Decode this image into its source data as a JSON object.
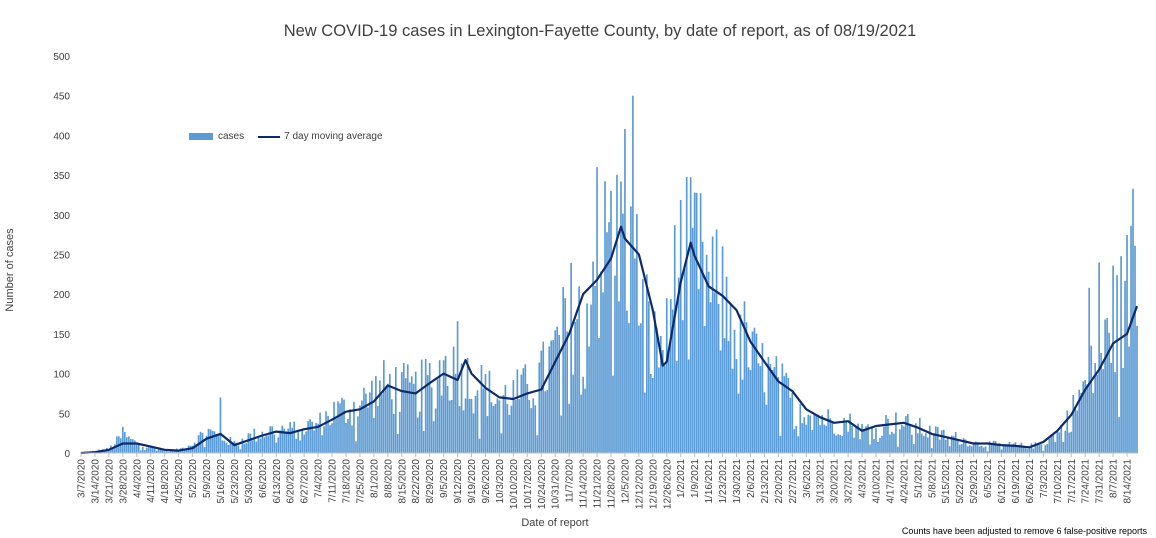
{
  "chart_data": {
    "type": "bar",
    "title": "New COVID-19 cases in Lexington-Fayette County, by date of report, as of 08/19/2021",
    "xlabel": "Date of report",
    "ylabel": "Number of cases",
    "ylim": [
      0,
      500
    ],
    "y_ticks": [
      "0",
      "50",
      "100",
      "150",
      "200",
      "250",
      "300",
      "350",
      "400",
      "450",
      "500"
    ],
    "x_tick_labels": [
      "3/7/2020",
      "3/14/2020",
      "3/21/2020",
      "3/28/2020",
      "4/4/2020",
      "4/11/2020",
      "4/18/2020",
      "4/25/2020",
      "5/2/2020",
      "5/9/2020",
      "5/16/2020",
      "5/23/2020",
      "5/30/2020",
      "6/6/2020",
      "6/13/2020",
      "6/20/2020",
      "6/27/2020",
      "7/4/2020",
      "7/11/2020",
      "7/18/2020",
      "7/25/2020",
      "8/1/2020",
      "8/8/2020",
      "8/15/2020",
      "8/22/2020",
      "8/29/2020",
      "9/5/2020",
      "9/12/2020",
      "9/19/2020",
      "9/26/2020",
      "10/3/2020",
      "10/10/2020",
      "10/17/2020",
      "10/24/2020",
      "10/31/2020",
      "11/7/2020",
      "11/14/2020",
      "11/21/2020",
      "11/28/2020",
      "12/5/2020",
      "12/12/2020",
      "12/19/2020",
      "12/26/2020",
      "1/2/2021",
      "1/9/2021",
      "1/16/2021",
      "1/23/2021",
      "1/30/2021",
      "2/6/2021",
      "2/13/2021",
      "2/20/2021",
      "2/27/2021",
      "3/6/2021",
      "3/13/2021",
      "3/20/2021",
      "3/27/2021",
      "4/3/2021",
      "4/10/2021",
      "4/17/2021",
      "4/24/2021",
      "5/1/2021",
      "5/8/2021",
      "5/15/2021",
      "5/22/2021",
      "5/29/2021",
      "6/5/2021",
      "6/12/2021",
      "6/19/2021",
      "6/26/2021",
      "7/3/2021",
      "7/10/2021",
      "7/17/2021",
      "7/24/2021",
      "7/31/2021",
      "8/7/2021",
      "8/14/2021"
    ],
    "legend": {
      "placement": "upper-left",
      "entries": [
        "cases",
        "7 day moving average"
      ]
    },
    "series": [
      {
        "name": "cases",
        "type": "bar",
        "color": "#5b9bd5",
        "description_points": [
          [
            "3/7/2020",
            0
          ],
          [
            "3/21/2020",
            5
          ],
          [
            "3/28/2020",
            22
          ],
          [
            "4/4/2020",
            12
          ],
          [
            "4/11/2020",
            7
          ],
          [
            "4/18/2020",
            3
          ],
          [
            "4/25/2020",
            4
          ],
          [
            "5/2/2020",
            12
          ],
          [
            "5/9/2020",
            28
          ],
          [
            "5/16/2020",
            20
          ],
          [
            "5/23/2020",
            12
          ],
          [
            "5/30/2020",
            20
          ],
          [
            "6/6/2020",
            25
          ],
          [
            "6/13/2020",
            30
          ],
          [
            "6/20/2020",
            28
          ],
          [
            "6/27/2020",
            33
          ],
          [
            "7/4/2020",
            35
          ],
          [
            "7/11/2020",
            50
          ],
          [
            "7/18/2020",
            55
          ],
          [
            "7/25/2020",
            60
          ],
          [
            "8/1/2020",
            75
          ],
          [
            "8/8/2020",
            85
          ],
          [
            "8/15/2020",
            80
          ],
          [
            "8/22/2020",
            75
          ],
          [
            "8/29/2020",
            90
          ],
          [
            "9/5/2020",
            108
          ],
          [
            "9/12/2020",
            100
          ],
          [
            "9/19/2020",
            90
          ],
          [
            "9/26/2020",
            78
          ],
          [
            "10/3/2020",
            68
          ],
          [
            "10/10/2020",
            72
          ],
          [
            "10/17/2020",
            80
          ],
          [
            "10/24/2020",
            95
          ],
          [
            "10/31/2020",
            125
          ],
          [
            "11/7/2020",
            165
          ],
          [
            "11/14/2020",
            210
          ],
          [
            "11/21/2020",
            230
          ],
          [
            "11/28/2020",
            265
          ],
          [
            "12/5/2020",
            270
          ],
          [
            "12/12/2020",
            215
          ],
          [
            "12/19/2020",
            130
          ],
          [
            "12/26/2020",
            140
          ],
          [
            "1/2/2021",
            235
          ],
          [
            "1/9/2021",
            250
          ],
          [
            "1/16/2021",
            205
          ],
          [
            "1/23/2021",
            190
          ],
          [
            "1/30/2021",
            160
          ],
          [
            "2/6/2021",
            120
          ],
          [
            "2/13/2021",
            100
          ],
          [
            "2/20/2021",
            85
          ],
          [
            "2/27/2021",
            65
          ],
          [
            "3/6/2021",
            55
          ],
          [
            "3/13/2021",
            45
          ],
          [
            "3/20/2021",
            38
          ],
          [
            "3/27/2021",
            38
          ],
          [
            "4/3/2021",
            28
          ],
          [
            "4/10/2021",
            32
          ],
          [
            "4/17/2021",
            38
          ],
          [
            "4/24/2021",
            36
          ],
          [
            "5/1/2021",
            32
          ],
          [
            "5/8/2021",
            25
          ],
          [
            "5/15/2021",
            22
          ],
          [
            "5/22/2021",
            18
          ],
          [
            "5/29/2021",
            12
          ],
          [
            "6/5/2021",
            11
          ],
          [
            "6/12/2021",
            10
          ],
          [
            "6/19/2021",
            10
          ],
          [
            "6/26/2021",
            8
          ],
          [
            "7/3/2021",
            12
          ],
          [
            "7/10/2021",
            25
          ],
          [
            "7/17/2021",
            48
          ],
          [
            "7/24/2021",
            85
          ],
          [
            "7/31/2021",
            115
          ],
          [
            "8/7/2021",
            150
          ],
          [
            "8/14/2021",
            200
          ],
          [
            "8/19/2021",
            225
          ]
        ],
        "highlight_values": [
          [
            "3/28/2020",
            33
          ],
          [
            "5/16/2020",
            70
          ],
          [
            "9/12/2020",
            166
          ],
          [
            "11/21/2020",
            360
          ],
          [
            "11/28/2020",
            330
          ],
          [
            "12/5/2020",
            408
          ],
          [
            "12/9/2020",
            450
          ],
          [
            "12/30/2020",
            287
          ],
          [
            "1/9/2021",
            328
          ],
          [
            "7/26/2021",
            208
          ],
          [
            "7/31/2021",
            240
          ],
          [
            "8/7/2021",
            236
          ],
          [
            "8/17/2021",
            333
          ]
        ]
      },
      {
        "name": "7 day moving average",
        "type": "line",
        "color": "#0d2a6b",
        "points": [
          [
            "3/7/2020",
            0
          ],
          [
            "3/14/2020",
            1
          ],
          [
            "3/21/2020",
            4
          ],
          [
            "3/28/2020",
            12
          ],
          [
            "4/4/2020",
            12
          ],
          [
            "4/11/2020",
            8
          ],
          [
            "4/18/2020",
            4
          ],
          [
            "4/25/2020",
            3
          ],
          [
            "5/2/2020",
            6
          ],
          [
            "5/9/2020",
            18
          ],
          [
            "5/16/2020",
            24
          ],
          [
            "5/23/2020",
            10
          ],
          [
            "5/30/2020",
            16
          ],
          [
            "6/6/2020",
            22
          ],
          [
            "6/13/2020",
            27
          ],
          [
            "6/20/2020",
            25
          ],
          [
            "6/27/2020",
            30
          ],
          [
            "7/4/2020",
            33
          ],
          [
            "7/11/2020",
            42
          ],
          [
            "7/18/2020",
            52
          ],
          [
            "7/25/2020",
            55
          ],
          [
            "8/1/2020",
            65
          ],
          [
            "8/8/2020",
            85
          ],
          [
            "8/15/2020",
            78
          ],
          [
            "8/22/2020",
            75
          ],
          [
            "8/29/2020",
            88
          ],
          [
            "9/5/2020",
            100
          ],
          [
            "9/12/2020",
            92
          ],
          [
            "9/16/2020",
            117
          ],
          [
            "9/19/2020",
            100
          ],
          [
            "9/26/2020",
            82
          ],
          [
            "10/3/2020",
            70
          ],
          [
            "10/10/2020",
            68
          ],
          [
            "10/17/2020",
            75
          ],
          [
            "10/24/2020",
            80
          ],
          [
            "10/31/2020",
            115
          ],
          [
            "11/7/2020",
            150
          ],
          [
            "11/14/2020",
            200
          ],
          [
            "11/21/2020",
            218
          ],
          [
            "11/28/2020",
            245
          ],
          [
            "12/3/2020",
            285
          ],
          [
            "12/5/2020",
            270
          ],
          [
            "12/12/2020",
            250
          ],
          [
            "12/19/2020",
            180
          ],
          [
            "12/24/2020",
            110
          ],
          [
            "12/26/2020",
            115
          ],
          [
            "1/2/2021",
            215
          ],
          [
            "1/7/2021",
            265
          ],
          [
            "1/9/2021",
            248
          ],
          [
            "1/16/2021",
            210
          ],
          [
            "1/23/2021",
            198
          ],
          [
            "1/30/2021",
            180
          ],
          [
            "2/6/2021",
            140
          ],
          [
            "2/13/2021",
            115
          ],
          [
            "2/20/2021",
            90
          ],
          [
            "2/27/2021",
            78
          ],
          [
            "3/6/2021",
            55
          ],
          [
            "3/13/2021",
            45
          ],
          [
            "3/20/2021",
            38
          ],
          [
            "3/27/2021",
            40
          ],
          [
            "4/3/2021",
            28
          ],
          [
            "4/10/2021",
            34
          ],
          [
            "4/17/2021",
            36
          ],
          [
            "4/24/2021",
            38
          ],
          [
            "5/1/2021",
            32
          ],
          [
            "5/8/2021",
            24
          ],
          [
            "5/15/2021",
            20
          ],
          [
            "5/22/2021",
            16
          ],
          [
            "5/29/2021",
            12
          ],
          [
            "6/5/2021",
            12
          ],
          [
            "6/12/2021",
            10
          ],
          [
            "6/19/2021",
            9
          ],
          [
            "6/26/2021",
            7
          ],
          [
            "7/3/2021",
            14
          ],
          [
            "7/10/2021",
            28
          ],
          [
            "7/17/2021",
            48
          ],
          [
            "7/24/2021",
            80
          ],
          [
            "7/31/2021",
            105
          ],
          [
            "8/7/2021",
            138
          ],
          [
            "8/14/2021",
            150
          ],
          [
            "8/19/2021",
            185
          ]
        ]
      }
    ]
  },
  "footnote": "Counts have been adjusted to remove 6 false-positive reports"
}
